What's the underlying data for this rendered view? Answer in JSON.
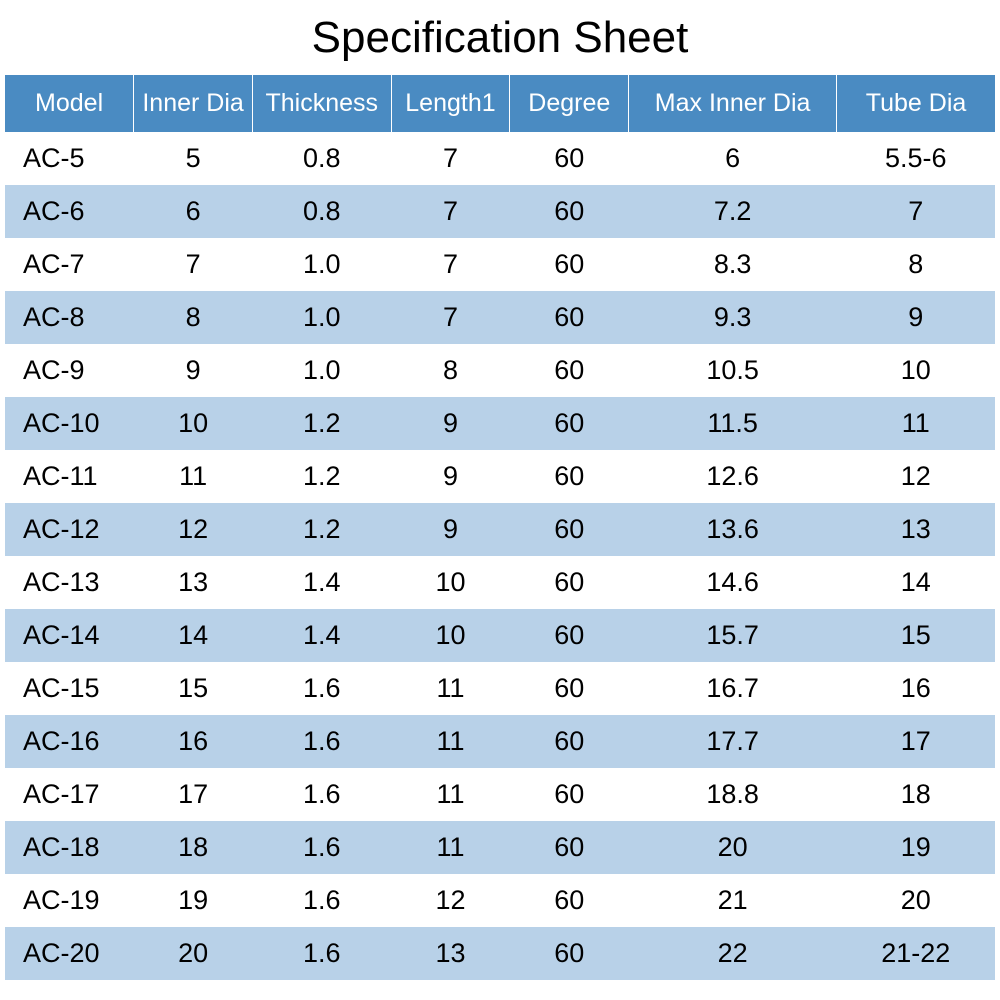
{
  "title": "Specification Sheet",
  "table": {
    "type": "table",
    "header_bg_color": "#4a8bc2",
    "header_text_color": "#ffffff",
    "row_even_bg_color": "#ffffff",
    "row_odd_bg_color": "#b8d1e8",
    "cell_text_color": "#000000",
    "header_fontsize": 25,
    "cell_fontsize": 27,
    "columns": [
      {
        "label": "Model",
        "width_pct": 13,
        "align": "left"
      },
      {
        "label": "Inner Dia",
        "width_pct": 12,
        "align": "center"
      },
      {
        "label": "Thickness",
        "width_pct": 14,
        "align": "center"
      },
      {
        "label": "Length1",
        "width_pct": 12,
        "align": "center"
      },
      {
        "label": "Degree",
        "width_pct": 12,
        "align": "center"
      },
      {
        "label": "Max Inner Dia",
        "width_pct": 21,
        "align": "center"
      },
      {
        "label": "Tube Dia",
        "width_pct": 16,
        "align": "center"
      }
    ],
    "rows": [
      [
        "AC-5",
        "5",
        "0.8",
        "7",
        "60",
        "6",
        "5.5-6"
      ],
      [
        "AC-6",
        "6",
        "0.8",
        "7",
        "60",
        "7.2",
        "7"
      ],
      [
        "AC-7",
        "7",
        "1.0",
        "7",
        "60",
        "8.3",
        "8"
      ],
      [
        "AC-8",
        "8",
        "1.0",
        "7",
        "60",
        "9.3",
        "9"
      ],
      [
        "AC-9",
        "9",
        "1.0",
        "8",
        "60",
        "10.5",
        "10"
      ],
      [
        "AC-10",
        "10",
        "1.2",
        "9",
        "60",
        "11.5",
        "11"
      ],
      [
        "AC-11",
        "11",
        "1.2",
        "9",
        "60",
        "12.6",
        "12"
      ],
      [
        "AC-12",
        "12",
        "1.2",
        "9",
        "60",
        "13.6",
        "13"
      ],
      [
        "AC-13",
        "13",
        "1.4",
        "10",
        "60",
        "14.6",
        "14"
      ],
      [
        "AC-14",
        "14",
        "1.4",
        "10",
        "60",
        "15.7",
        "15"
      ],
      [
        "AC-15",
        "15",
        "1.6",
        "11",
        "60",
        "16.7",
        "16"
      ],
      [
        "AC-16",
        "16",
        "1.6",
        "11",
        "60",
        "17.7",
        "17"
      ],
      [
        "AC-17",
        "17",
        "1.6",
        "11",
        "60",
        "18.8",
        "18"
      ],
      [
        "AC-18",
        "18",
        "1.6",
        "11",
        "60",
        "20",
        "19"
      ],
      [
        "AC-19",
        "19",
        "1.6",
        "12",
        "60",
        "21",
        "20"
      ],
      [
        "AC-20",
        "20",
        "1.6",
        "13",
        "60",
        "22",
        "21-22"
      ]
    ]
  }
}
